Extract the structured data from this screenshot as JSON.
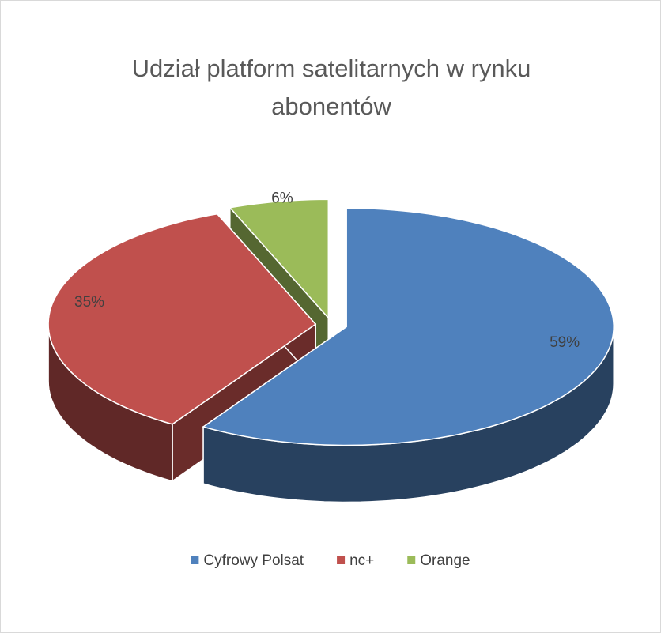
{
  "chart_data": {
    "type": "pie3d",
    "title": "Udział platform satelitarnych w rynku abonentów",
    "categories": [
      "Cyfrowy Polsat",
      "nc+",
      "Orange"
    ],
    "values": [
      59,
      35,
      6
    ],
    "value_labels": [
      "59%",
      "35%",
      "6%"
    ],
    "colors": [
      "#4f81bd",
      "#c0504d",
      "#9bbb59"
    ],
    "legend": "bottom"
  }
}
